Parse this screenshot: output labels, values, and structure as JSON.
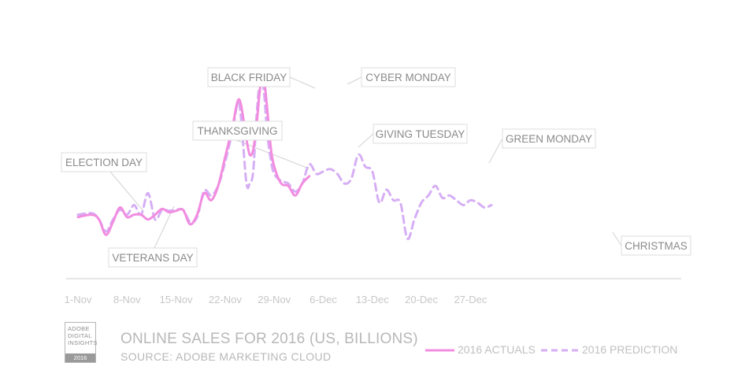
{
  "chart_data": {
    "type": "line",
    "title": "ONLINE SALES FOR 2016 (US, BILLIONS)",
    "subtitle": "SOURCE: ADOBE MARKETING CLOUD",
    "x_ticks": [
      "1-Nov",
      "8-Nov",
      "15-Nov",
      "22-Nov",
      "29-Nov",
      "6-Dec",
      "13-Dec",
      "20-Dec",
      "27-Dec"
    ],
    "x_range": [
      1,
      60
    ],
    "y_range": [
      0,
      4.5
    ],
    "grid": false,
    "legend_placement": "bottom-right",
    "series": [
      {
        "name": "2016 ACTUALS",
        "color": "#f28ce0",
        "style": "solid",
        "x": [
          1,
          3,
          4,
          5,
          6,
          7,
          8,
          9,
          10,
          11,
          12,
          13,
          14,
          15,
          16,
          17,
          18,
          19,
          20,
          21,
          22,
          23,
          24,
          25,
          25.5,
          26,
          26.5,
          27,
          27.5,
          28,
          28.5,
          29,
          30,
          31,
          32,
          33,
          34
        ],
        "values": [
          1.25,
          1.3,
          1.2,
          0.88,
          1.15,
          1.45,
          1.25,
          1.3,
          1.3,
          1.2,
          1.3,
          1.42,
          1.35,
          1.38,
          1.4,
          1.1,
          1.3,
          1.75,
          1.6,
          1.9,
          2.5,
          3.1,
          3.7,
          2.9,
          2.55,
          2.65,
          3.2,
          3.95,
          4.15,
          3.5,
          2.7,
          2.3,
          1.95,
          1.9,
          1.7,
          1.95,
          2.1
        ]
      },
      {
        "name": "2016 PREDICTION",
        "color": "#d6aef5",
        "style": "dashed",
        "x": [
          1,
          3,
          4,
          5,
          6,
          7,
          8,
          9,
          10,
          11,
          12,
          13,
          14,
          15,
          16,
          17,
          18,
          19,
          20,
          21,
          22,
          23,
          24,
          25,
          25.5,
          26,
          26.5,
          27,
          27.5,
          28,
          28.5,
          29,
          30,
          31,
          32,
          33,
          34,
          35,
          36,
          37,
          38,
          39,
          40,
          41,
          42,
          43,
          44,
          45,
          46,
          47,
          48,
          49,
          50,
          51,
          52,
          53,
          54,
          55,
          56,
          57,
          58,
          59,
          60
        ],
        "values": [
          1.3,
          1.33,
          1.2,
          0.95,
          1.2,
          1.4,
          1.3,
          1.5,
          1.3,
          1.75,
          1.2,
          1.4,
          1.38,
          1.4,
          1.4,
          1.15,
          1.25,
          1.8,
          1.7,
          1.9,
          2.4,
          3.0,
          3.6,
          2.0,
          1.95,
          2.2,
          3.4,
          4.1,
          3.9,
          3.0,
          2.45,
          2.15,
          2.0,
          1.95,
          1.78,
          1.95,
          2.35,
          2.15,
          2.2,
          2.25,
          2.15,
          1.95,
          2.05,
          2.55,
          2.3,
          2.2,
          1.55,
          1.82,
          1.6,
          1.55,
          0.8,
          1.2,
          1.55,
          1.7,
          1.9,
          1.65,
          1.7,
          1.6,
          1.5,
          1.6,
          1.55,
          1.45,
          1.5
        ]
      }
    ],
    "annotations": [
      {
        "label": "ELECTION DAY",
        "x": 8
      },
      {
        "label": "VETERANS DAY",
        "x": 11
      },
      {
        "label": "THANKSGIVING",
        "x": 24
      },
      {
        "label": "BLACK FRIDAY",
        "x": 25
      },
      {
        "label": "CYBER MONDAY",
        "x": 28
      },
      {
        "label": "GIVING TUESDAY",
        "x": 29
      },
      {
        "label": "GREEN MONDAY",
        "x": 43
      },
      {
        "label": "CHRISTMAS",
        "x": 55
      }
    ]
  },
  "logo": {
    "lines": [
      "ADOBE",
      "DIGITAL",
      "INSIGHTS"
    ],
    "year": "2016"
  },
  "colors": {
    "actuals": "#f28ce0",
    "prediction": "#d6aef5",
    "axis": "#d7d7d7",
    "text": "#b8b8b8"
  }
}
